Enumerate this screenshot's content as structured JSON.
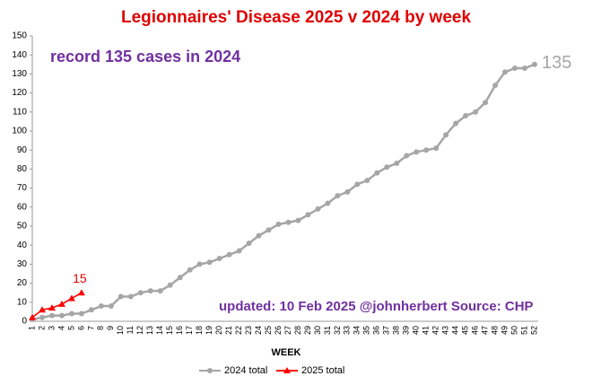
{
  "chart_data": {
    "type": "line",
    "title": "Legionnaires' Disease 2025 v 2024 by week",
    "x_label": "WEEK",
    "categories": [
      "1",
      "2",
      "3",
      "4",
      "5",
      "6",
      "7",
      "8",
      "9",
      "10",
      "11",
      "12",
      "13",
      "14",
      "15",
      "16",
      "17",
      "18",
      "19",
      "20",
      "21",
      "22",
      "23",
      "24",
      "25",
      "26",
      "27",
      "28",
      "29",
      "30",
      "31",
      "32",
      "33",
      "34",
      "35",
      "36",
      "37",
      "38",
      "39",
      "40",
      "41",
      "42",
      "43",
      "44",
      "45",
      "46",
      "47",
      "48",
      "49",
      "50",
      "51",
      "52"
    ],
    "series": [
      {
        "name": "2024 total",
        "color": "#a6a6a6",
        "marker": "circle",
        "values": [
          1,
          2,
          3,
          3,
          4,
          4,
          6,
          8,
          8,
          13,
          13,
          15,
          16,
          16,
          19,
          23,
          27,
          30,
          31,
          33,
          35,
          37,
          41,
          45,
          48,
          51,
          52,
          53,
          56,
          59,
          62,
          66,
          68,
          72,
          74,
          78,
          81,
          83,
          87,
          89,
          90,
          91,
          98,
          104,
          108,
          110,
          115,
          124,
          131,
          133,
          133,
          135
        ]
      },
      {
        "name": "2025 total",
        "color": "#ff0000",
        "marker": "triangle",
        "values": [
          2,
          6,
          7,
          9,
          12,
          15,
          null,
          null,
          null,
          null,
          null,
          null,
          null,
          null,
          null,
          null,
          null,
          null,
          null,
          null,
          null,
          null,
          null,
          null,
          null,
          null,
          null,
          null,
          null,
          null,
          null,
          null,
          null,
          null,
          null,
          null,
          null,
          null,
          null,
          null,
          null,
          null,
          null,
          null,
          null,
          null,
          null,
          null,
          null,
          null,
          null,
          null
        ]
      }
    ],
    "ylim": [
      0,
      150
    ],
    "yticks": [
      0,
      10,
      20,
      30,
      40,
      50,
      60,
      70,
      80,
      90,
      100,
      110,
      120,
      130,
      140,
      150
    ],
    "annotations": [
      "record 135 cases in 2024",
      "updated: 10 Feb 2025  @johnherbert  Source: CHP"
    ],
    "grid": false,
    "legend": "bottom"
  }
}
